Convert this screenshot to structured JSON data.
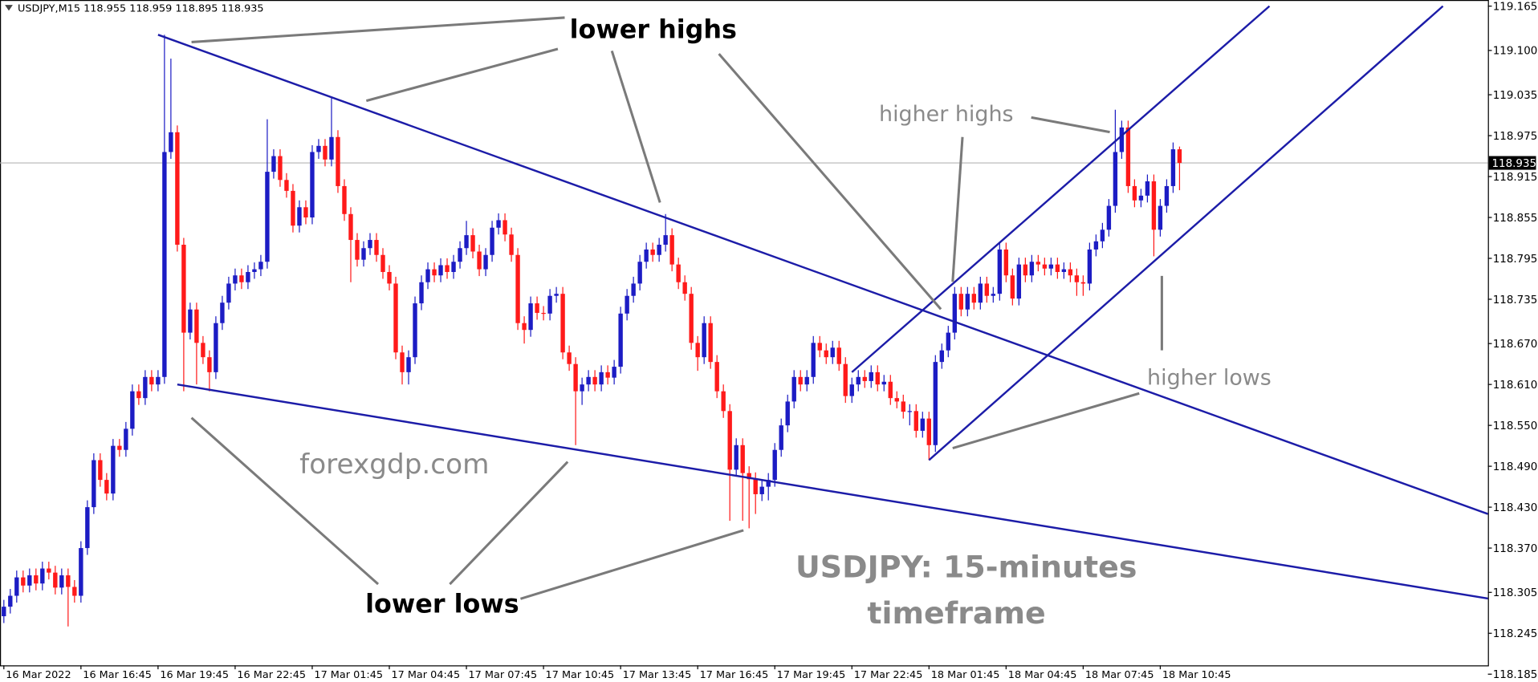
{
  "chart_data": {
    "type": "candlestick",
    "title": "USDJPY,M15 118.955 118.959 118.895 118.935",
    "bull_color": "#1c1cc4",
    "bear_color": "#ff1a1a",
    "trendline_color": "#1c1ca8",
    "price_line_color": "#b4b4b4",
    "current_price": 118.935,
    "xlim": [
      -0.6,
      231.0
    ],
    "ylim": [
      118.185,
      119.174
    ],
    "xticks": [
      {
        "value": 0,
        "label": "16 Mar 2022"
      },
      {
        "value": 12,
        "label": "16 Mar 16:45"
      },
      {
        "value": 24,
        "label": "16 Mar 19:45"
      },
      {
        "value": 36,
        "label": "16 Mar 22:45"
      },
      {
        "value": 48,
        "label": "17 Mar 01:45"
      },
      {
        "value": 60,
        "label": "17 Mar 04:45"
      },
      {
        "value": 72,
        "label": "17 Mar 07:45"
      },
      {
        "value": 84,
        "label": "17 Mar 10:45"
      },
      {
        "value": 96,
        "label": "17 Mar 13:45"
      },
      {
        "value": 108,
        "label": "17 Mar 16:45"
      },
      {
        "value": 120,
        "label": "17 Mar 19:45"
      },
      {
        "value": 132,
        "label": "17 Mar 22:45"
      },
      {
        "value": 144,
        "label": "18 Mar 01:45"
      },
      {
        "value": 156,
        "label": "18 Mar 04:45"
      },
      {
        "value": 168,
        "label": "18 Mar 07:45"
      },
      {
        "value": 180,
        "label": "18 Mar 10:45"
      }
    ],
    "yticks": [
      119.165,
      {
        "value": 119.1,
        "label": "119.100"
      },
      119.035,
      118.975,
      118.915,
      118.855,
      118.795,
      118.735,
      {
        "value": 118.67,
        "label": "118.670"
      },
      {
        "value": 118.61,
        "label": "118.610"
      },
      {
        "value": 118.55,
        "label": "118.550"
      },
      {
        "value": 118.49,
        "label": "118.490"
      },
      {
        "value": 118.43,
        "label": "118.430"
      },
      {
        "value": 118.37,
        "label": "118.370"
      },
      118.305,
      118.245,
      118.185
    ],
    "trendlines": [
      {
        "x": [
          24,
          231
        ],
        "y": [
          119.123,
          118.42
        ]
      },
      {
        "x": [
          27,
          231
        ],
        "y": [
          118.61,
          118.296
        ]
      },
      {
        "x": [
          132,
          197
        ],
        "y": [
          118.628,
          119.165
        ]
      },
      {
        "x": [
          144,
          224
        ],
        "y": [
          118.499,
          119.165
        ]
      }
    ],
    "annotations": [
      "lower highs",
      "higher highs",
      "higher lows",
      "lower lows",
      "forexgdp.com",
      "USDJPY: 15-minutes",
      "timeframe"
    ],
    "open": [
      118.27,
      118.284,
      118.3,
      118.327,
      118.315,
      118.33,
      118.318,
      118.34,
      118.334,
      118.312,
      118.33,
      118.313,
      118.3,
      118.37,
      118.43,
      118.499,
      118.47,
      118.45,
      118.52,
      118.514,
      118.545,
      118.6,
      118.59,
      118.621,
      118.61,
      118.621,
      118.951,
      118.98,
      118.815,
      118.686,
      118.72,
      118.671,
      118.65,
      118.628,
      118.7,
      118.73,
      118.758,
      118.77,
      118.76,
      118.775,
      118.779,
      118.79,
      118.922,
      118.945,
      118.91,
      118.894,
      118.843,
      118.87,
      118.855,
      118.951,
      118.96,
      118.94,
      118.973,
      118.901,
      118.86,
      118.822,
      118.793,
      118.81,
      118.822,
      118.8,
      118.775,
      118.758,
      118.657,
      118.628,
      118.65,
      118.729,
      118.76,
      118.779,
      118.77,
      118.785,
      118.775,
      118.79,
      118.81,
      118.829,
      118.805,
      118.779,
      118.8,
      118.84,
      118.851,
      118.83,
      118.8,
      118.7,
      118.69,
      118.729,
      118.715,
      118.714,
      118.74,
      118.743,
      118.657,
      118.64,
      118.6,
      118.61,
      118.621,
      118.61,
      118.628,
      118.62,
      118.636,
      118.714,
      118.74,
      118.758,
      118.79,
      118.808,
      118.8,
      118.815,
      118.829,
      118.786,
      118.76,
      118.743,
      118.671,
      118.65,
      118.7,
      118.643,
      118.6,
      118.571,
      118.485,
      118.521,
      118.48,
      118.471,
      118.449,
      118.46,
      118.47,
      118.514,
      118.55,
      118.585,
      118.621,
      118.61,
      118.621,
      118.671,
      118.66,
      118.65,
      118.664,
      118.64,
      118.593,
      118.61,
      118.621,
      118.615,
      118.628,
      118.61,
      118.614,
      118.59,
      118.585,
      118.57,
      118.571,
      118.542,
      118.56,
      118.521,
      118.643,
      118.66,
      118.686,
      118.743,
      118.72,
      118.743,
      118.73,
      118.758,
      118.74,
      118.743,
      118.808,
      118.77,
      118.736,
      118.786,
      118.77,
      118.79,
      118.786,
      118.78,
      118.786,
      118.775,
      118.779,
      118.77,
      118.76,
      118.758,
      118.808,
      118.82,
      118.837,
      118.872,
      118.951,
      118.987,
      118.901,
      118.88,
      118.887,
      118.908,
      118.837,
      118.872,
      118.901,
      118.955
    ],
    "high": [
      118.294,
      118.31,
      118.337,
      118.337,
      118.34,
      118.34,
      118.35,
      118.35,
      118.344,
      118.34,
      118.34,
      118.323,
      118.38,
      118.44,
      118.509,
      118.509,
      118.48,
      118.53,
      118.53,
      118.555,
      118.61,
      118.61,
      118.631,
      118.631,
      118.631,
      119.123,
      119.088,
      118.99,
      118.825,
      118.73,
      118.73,
      118.681,
      118.66,
      118.71,
      118.74,
      118.768,
      118.78,
      118.78,
      118.785,
      118.789,
      118.8,
      118.999,
      118.955,
      118.955,
      118.92,
      118.904,
      118.88,
      118.88,
      118.961,
      118.97,
      118.97,
      119.03,
      118.983,
      118.911,
      118.87,
      118.832,
      118.82,
      118.832,
      118.832,
      118.81,
      118.785,
      118.768,
      118.667,
      118.66,
      118.739,
      118.77,
      118.789,
      118.789,
      118.795,
      118.795,
      118.8,
      118.82,
      118.85,
      118.839,
      118.815,
      118.81,
      118.85,
      118.861,
      118.861,
      118.84,
      118.81,
      118.71,
      118.739,
      118.739,
      118.725,
      118.75,
      118.753,
      118.753,
      118.667,
      118.65,
      118.62,
      118.631,
      118.631,
      118.638,
      118.638,
      118.646,
      118.724,
      118.75,
      118.768,
      118.8,
      118.818,
      118.818,
      118.825,
      118.86,
      118.839,
      118.796,
      118.77,
      118.753,
      118.681,
      118.71,
      118.71,
      118.653,
      118.61,
      118.581,
      118.531,
      118.531,
      118.49,
      118.481,
      118.47,
      118.48,
      118.524,
      118.56,
      118.595,
      118.631,
      118.631,
      118.631,
      118.681,
      118.681,
      118.67,
      118.674,
      118.674,
      118.65,
      118.62,
      118.631,
      118.631,
      118.638,
      118.638,
      118.624,
      118.624,
      118.6,
      118.595,
      118.581,
      118.581,
      118.57,
      118.57,
      118.653,
      118.67,
      118.696,
      118.753,
      118.753,
      118.753,
      118.753,
      118.768,
      118.768,
      118.753,
      118.818,
      118.818,
      118.78,
      118.796,
      118.796,
      118.8,
      118.8,
      118.796,
      118.796,
      118.796,
      118.789,
      118.789,
      118.78,
      118.77,
      118.818,
      118.83,
      118.847,
      118.882,
      119.013,
      118.997,
      118.997,
      118.911,
      118.897,
      118.918,
      118.918,
      118.882,
      118.911,
      118.965,
      118.959
    ],
    "low": [
      118.26,
      118.274,
      118.29,
      118.305,
      118.305,
      118.308,
      118.308,
      118.324,
      118.302,
      118.302,
      118.255,
      118.29,
      118.29,
      118.36,
      118.42,
      118.46,
      118.44,
      118.44,
      118.504,
      118.504,
      118.535,
      118.58,
      118.58,
      118.6,
      118.6,
      118.611,
      118.941,
      118.805,
      118.6,
      118.676,
      118.61,
      118.64,
      118.6,
      118.618,
      118.69,
      118.72,
      118.748,
      118.75,
      118.75,
      118.765,
      118.769,
      118.78,
      118.912,
      118.9,
      118.884,
      118.833,
      118.833,
      118.845,
      118.845,
      118.941,
      118.93,
      118.93,
      118.891,
      118.85,
      118.76,
      118.783,
      118.783,
      118.8,
      118.79,
      118.765,
      118.748,
      118.647,
      118.61,
      118.61,
      118.64,
      118.719,
      118.75,
      118.76,
      118.76,
      118.765,
      118.765,
      118.78,
      118.8,
      118.795,
      118.769,
      118.769,
      118.79,
      118.83,
      118.82,
      118.79,
      118.69,
      118.67,
      118.68,
      118.705,
      118.704,
      118.704,
      118.73,
      118.647,
      118.63,
      118.521,
      118.58,
      118.6,
      118.6,
      118.6,
      118.61,
      118.61,
      118.626,
      118.704,
      118.73,
      118.748,
      118.78,
      118.79,
      118.79,
      118.805,
      118.776,
      118.75,
      118.733,
      118.661,
      118.63,
      118.64,
      118.633,
      118.59,
      118.561,
      118.41,
      118.475,
      118.41,
      118.399,
      118.42,
      118.439,
      118.44,
      118.46,
      118.504,
      118.54,
      118.575,
      118.6,
      118.6,
      118.611,
      118.65,
      118.64,
      118.64,
      118.63,
      118.583,
      118.583,
      118.6,
      118.605,
      118.605,
      118.6,
      118.6,
      118.58,
      118.575,
      118.56,
      118.55,
      118.532,
      118.532,
      118.499,
      118.511,
      118.633,
      118.65,
      118.676,
      118.71,
      118.71,
      118.72,
      118.72,
      118.73,
      118.73,
      118.733,
      118.76,
      118.726,
      118.726,
      118.76,
      118.76,
      118.776,
      118.77,
      118.77,
      118.765,
      118.765,
      118.76,
      118.74,
      118.74,
      118.748,
      118.798,
      118.81,
      118.827,
      118.862,
      118.941,
      118.891,
      118.87,
      118.87,
      118.877,
      118.798,
      118.827,
      118.862,
      118.891,
      118.895
    ],
    "close": [
      118.284,
      118.3,
      118.327,
      118.315,
      118.33,
      118.318,
      118.34,
      118.334,
      118.312,
      118.33,
      118.313,
      118.3,
      118.37,
      118.43,
      118.499,
      118.47,
      118.45,
      118.52,
      118.514,
      118.545,
      118.6,
      118.59,
      118.621,
      118.61,
      118.621,
      118.951,
      118.98,
      118.815,
      118.686,
      118.72,
      118.671,
      118.65,
      118.628,
      118.7,
      118.73,
      118.758,
      118.77,
      118.76,
      118.775,
      118.779,
      118.79,
      118.922,
      118.945,
      118.91,
      118.894,
      118.843,
      118.87,
      118.855,
      118.951,
      118.96,
      118.94,
      118.973,
      118.901,
      118.86,
      118.822,
      118.793,
      118.81,
      118.822,
      118.8,
      118.775,
      118.758,
      118.657,
      118.628,
      118.65,
      118.729,
      118.76,
      118.779,
      118.77,
      118.785,
      118.775,
      118.79,
      118.81,
      118.829,
      118.805,
      118.779,
      118.8,
      118.84,
      118.851,
      118.83,
      118.8,
      118.7,
      118.69,
      118.729,
      118.715,
      118.714,
      118.74,
      118.743,
      118.657,
      118.64,
      118.6,
      118.61,
      118.621,
      118.61,
      118.628,
      118.62,
      118.636,
      118.714,
      118.74,
      118.758,
      118.79,
      118.808,
      118.8,
      118.815,
      118.829,
      118.786,
      118.76,
      118.743,
      118.671,
      118.65,
      118.7,
      118.643,
      118.6,
      118.571,
      118.485,
      118.521,
      118.48,
      118.471,
      118.449,
      118.46,
      118.47,
      118.514,
      118.55,
      118.585,
      118.621,
      118.61,
      118.621,
      118.671,
      118.66,
      118.65,
      118.664,
      118.64,
      118.593,
      118.61,
      118.621,
      118.615,
      118.628,
      118.61,
      118.614,
      118.59,
      118.585,
      118.57,
      118.571,
      118.542,
      118.56,
      118.521,
      118.643,
      118.66,
      118.686,
      118.743,
      118.72,
      118.743,
      118.73,
      118.758,
      118.74,
      118.743,
      118.808,
      118.77,
      118.736,
      118.786,
      118.77,
      118.79,
      118.786,
      118.78,
      118.786,
      118.775,
      118.779,
      118.77,
      118.76,
      118.758,
      118.808,
      118.82,
      118.837,
      118.872,
      118.951,
      118.987,
      118.901,
      118.88,
      118.887,
      118.908,
      118.837,
      118.872,
      118.901,
      118.955,
      118.935
    ]
  }
}
